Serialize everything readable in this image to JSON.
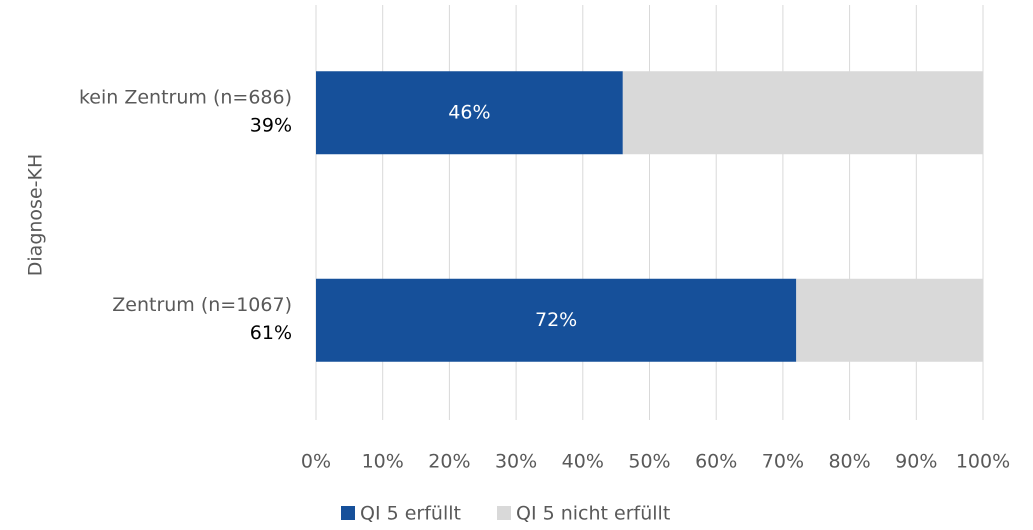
{
  "chart_data": {
    "type": "stacked_barh",
    "ylabel": "Diagnose-KH",
    "categories": [
      "kein Zentrum (n=686)",
      "Zentrum (n=1067)"
    ],
    "category_sublabels": [
      "39%",
      "61%"
    ],
    "series": [
      {
        "name": "QI 5 erfüllt",
        "color": "#16509a",
        "values": [
          46,
          72
        ],
        "value_labels": [
          "46%",
          "72%"
        ]
      },
      {
        "name": "QI 5 nicht erfüllt",
        "color": "#d9d9d9",
        "values": [
          54,
          28
        ]
      }
    ],
    "xlim": [
      0,
      100
    ],
    "xticks": [
      {
        "value": 0,
        "label": "0%"
      },
      {
        "value": 10,
        "label": "10%"
      },
      {
        "value": 20,
        "label": "20%"
      },
      {
        "value": 30,
        "label": "30%"
      },
      {
        "value": 40,
        "label": "40%"
      },
      {
        "value": 50,
        "label": "50%"
      },
      {
        "value": 60,
        "label": "60%"
      },
      {
        "value": 70,
        "label": "70%"
      },
      {
        "value": 80,
        "label": "80%"
      },
      {
        "value": 90,
        "label": "90%"
      },
      {
        "value": 100,
        "label": "100%"
      }
    ],
    "grid": true
  }
}
